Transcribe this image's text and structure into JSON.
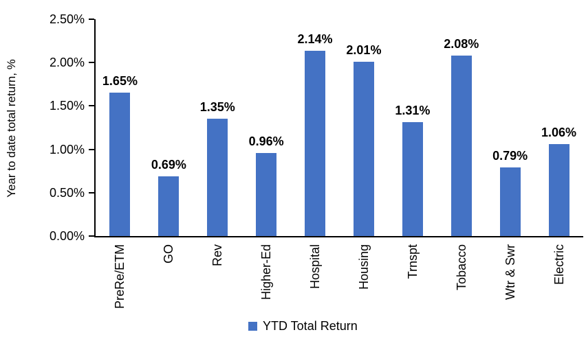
{
  "chart_data": {
    "type": "bar",
    "title": "",
    "categories": [
      "PreRe/ETM",
      "GO",
      "Rev",
      "Higher-Ed",
      "Hospital",
      "Housing",
      "Trnspt",
      "Tobacco",
      "Wtr & Swr",
      "Electric"
    ],
    "series": [
      {
        "name": "YTD Total Return",
        "values": [
          1.65,
          0.69,
          1.35,
          0.96,
          2.14,
          2.01,
          1.31,
          2.08,
          0.79,
          1.06
        ],
        "labels": [
          "1.65%",
          "0.69%",
          "1.35%",
          "0.96%",
          "2.14%",
          "2.01%",
          "1.31%",
          "2.08%",
          "0.79%",
          "1.06%"
        ],
        "color": "#4472C4"
      }
    ],
    "xlabel": "",
    "ylabel": "Year to date total return, %",
    "ylim": [
      0,
      2.5
    ],
    "y_ticks": [
      {
        "value": 0.0,
        "label": "0.00%"
      },
      {
        "value": 0.5,
        "label": "0.50%"
      },
      {
        "value": 1.0,
        "label": "1.00%"
      },
      {
        "value": 1.5,
        "label": "1.50%"
      },
      {
        "value": 2.0,
        "label": "2.00%"
      },
      {
        "value": 2.5,
        "label": "2.50%"
      }
    ],
    "grid": false,
    "data_labels": true,
    "axis_color": "#000000",
    "background": "#FFFFFF",
    "legend": {
      "label": "YTD Total Return",
      "position": "bottom-center",
      "swatch_color": "#4472C4"
    }
  }
}
